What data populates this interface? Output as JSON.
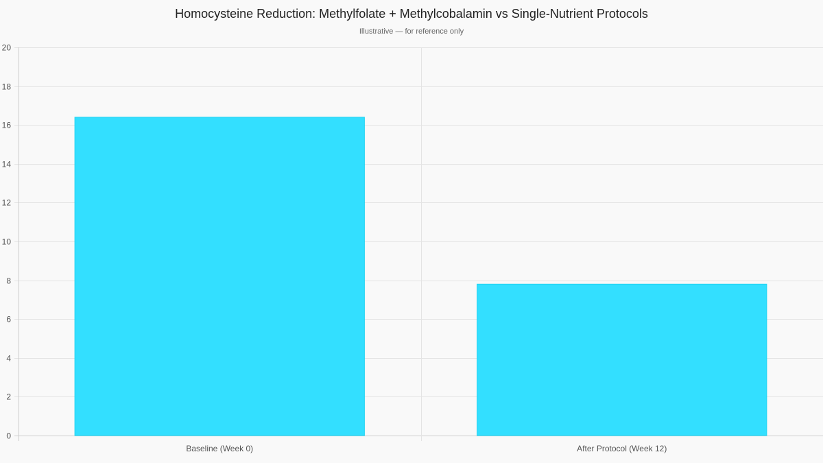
{
  "header": {
    "title": "Homocysteine Reduction: Methylfolate + Methylcobalamin vs Single-Nutrient Protocols",
    "subtitle": "Illustrative — for reference only"
  },
  "colors": {
    "bar_fill": "#33dfff",
    "bar_border": "#1fd3f2",
    "grid": "#e4e4e4",
    "axis": "#cccccc",
    "background": "#f9f9f9"
  },
  "chart_data": {
    "type": "bar",
    "title": "Homocysteine Reduction: Methylfolate + Methylcobalamin vs Single-Nutrient Protocols",
    "subtitle": "Illustrative — for reference only",
    "categories": [
      "Baseline (Week 0)",
      "After Protocol (Week 12)"
    ],
    "values": [
      16.4,
      7.8
    ],
    "xlabel": "",
    "ylabel": "",
    "ylim": [
      0,
      20
    ],
    "yticks": [
      0,
      2,
      4,
      6,
      8,
      10,
      12,
      14,
      16,
      18,
      20
    ],
    "grid": true,
    "legend": null
  }
}
